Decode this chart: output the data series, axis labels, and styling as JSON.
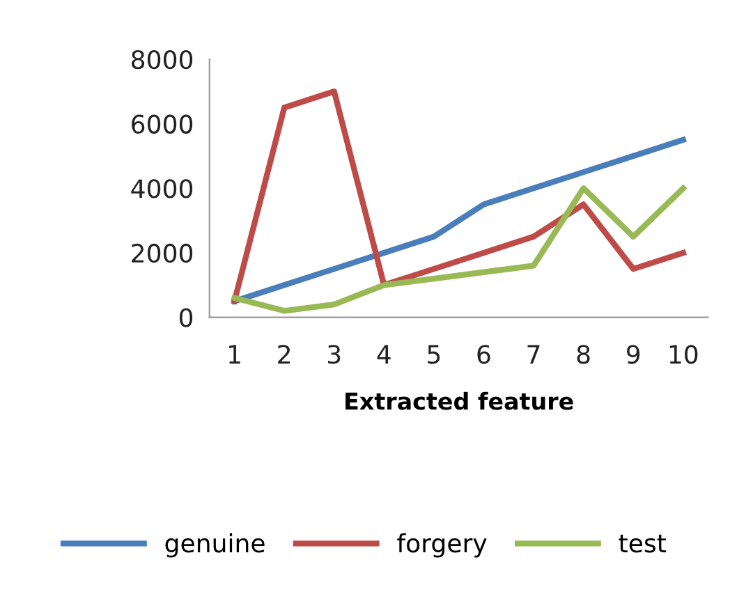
{
  "chart_data": {
    "type": "line",
    "xlabel": "Extracted feature",
    "categories": [
      "1",
      "2",
      "3",
      "4",
      "5",
      "6",
      "7",
      "8",
      "9",
      "10"
    ],
    "series": [
      {
        "name": "genuine",
        "color": "#4a7ebb",
        "values": [
          500,
          1000,
          1500,
          2000,
          2500,
          3500,
          4000,
          4500,
          5000,
          5500
        ]
      },
      {
        "name": "forgery",
        "color": "#be4b48",
        "values": [
          500,
          6500,
          7000,
          1000,
          1500,
          2000,
          2500,
          3500,
          1500,
          2000
        ]
      },
      {
        "name": "test",
        "color": "#98b954",
        "values": [
          600,
          200,
          400,
          1000,
          1200,
          1400,
          1600,
          4000,
          2500,
          4000
        ]
      }
    ],
    "ylim": [
      0,
      8000
    ],
    "yticks": [
      0,
      2000,
      4000,
      6000,
      8000
    ],
    "grid": false,
    "legend": "bottom",
    "marker": "none",
    "line_style": "solid"
  }
}
